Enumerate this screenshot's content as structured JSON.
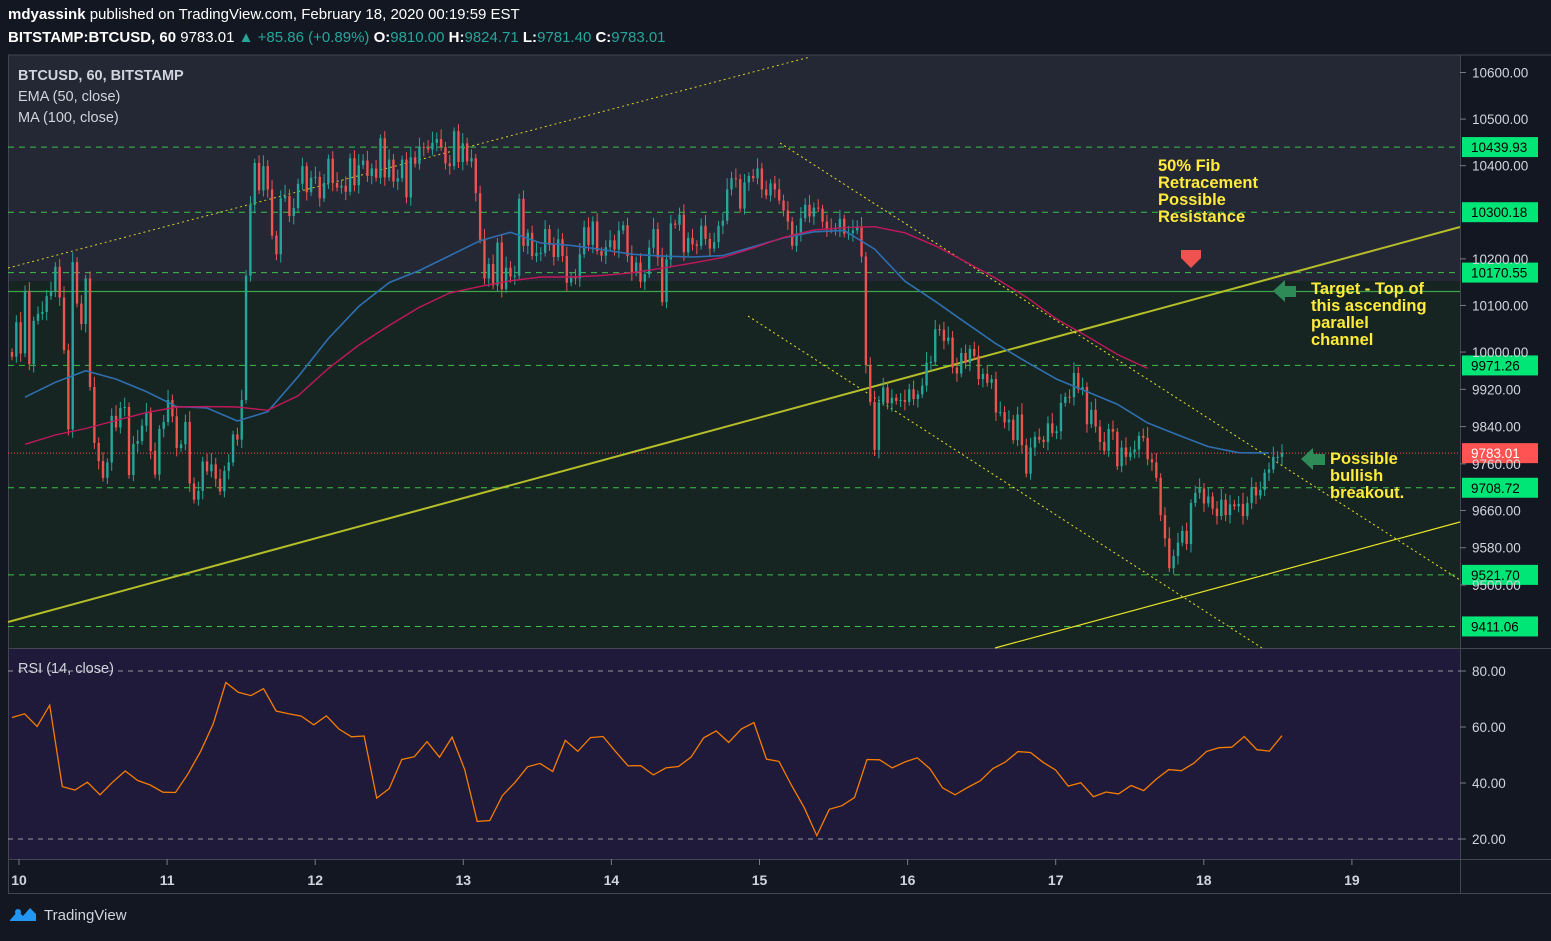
{
  "header": {
    "author": "mdyassink",
    "published": "published on TradingView.com, February 18, 2020 00:19:59 EST",
    "symbol": "BITSTAMP:BTCUSD, 60",
    "last": "9783.01",
    "change": "▲ +85.86 (+0.89%)",
    "o_label": "O:",
    "o": "9810.00",
    "h_label": "H:",
    "h": "9824.71",
    "l_label": "L:",
    "l": "9781.40",
    "c_label": "C:",
    "c": "9783.01"
  },
  "legend": {
    "title": "BTCUSD, 60, BITSTAMP",
    "ema": "EMA (50, close)",
    "ma": "MA (100, close)",
    "rsi": "RSI (14, close)"
  },
  "annotations": {
    "fib": [
      "50% Fib",
      "Retracement",
      "Possible",
      "Resistance"
    ],
    "target": [
      "Target - Top of",
      "this ascending",
      "parallel",
      "channel"
    ],
    "breakout": [
      "Possible",
      "bullish",
      "breakout."
    ]
  },
  "footer": {
    "brand": "TradingView"
  },
  "colors": {
    "bg": "#131722",
    "up": "#26a69a",
    "down": "#ef5350",
    "ema": "#2f6fb0",
    "ma": "#c2185b",
    "rsi": "#f57c00",
    "level": "#00e676",
    "channel": "#c8d02a",
    "annot": "#ffeb3b",
    "current": "#ff5252"
  },
  "chart_data": {
    "type": "candlestick",
    "title": "BTCUSD, 60, BITSTAMP",
    "x_tick_labels": [
      "10",
      "11",
      "12",
      "13",
      "14",
      "15",
      "16",
      "17",
      "18",
      "19"
    ],
    "y_tick_labels": [
      "10600.00",
      "10500.00",
      "10400.00",
      "10200.00",
      "10100.00",
      "10000.00",
      "9920.00",
      "9840.00",
      "9760.00",
      "9660.00",
      "9580.00",
      "9500.00"
    ],
    "ylim": [
      9395,
      10660
    ],
    "levels": [
      "10439.93",
      "10300.18",
      "10170.55",
      "9971.26",
      "9708.72",
      "9521.70",
      "9411.06"
    ],
    "current_price": "9783.01",
    "horizontal_line": 10130,
    "ohlc_series": [
      [
        9990,
        10064,
        9997,
        10131,
        9974,
        10067,
        10082
      ],
      [
        10086,
        10120,
        10131,
        10183,
        10117,
        10004,
        9834
      ],
      [
        10193,
        10104,
        10060,
        10158,
        9925,
        9805,
        9766
      ],
      [
        9730,
        9763,
        9863,
        9838,
        9880,
        9882,
        9736
      ],
      [
        9803,
        9809,
        9842,
        9870,
        9788,
        9737,
        9835
      ],
      [
        9850,
        9897,
        9862,
        9794,
        9802,
        9850,
        9718
      ],
      [
        9683,
        9702,
        9765,
        9744,
        9759,
        9728,
        9701
      ],
      [
        9745,
        9763,
        9823,
        9812,
        9897,
        10164,
        10316
      ],
      [
        10406,
        10347,
        10399,
        10349,
        10250,
        10210,
        10330
      ],
      [
        10335,
        10292,
        10309,
        10361,
        10399,
        10343,
        10374
      ],
      [
        10376,
        10330,
        10363,
        10415,
        10363,
        10353,
        10357
      ],
      [
        10344,
        10416,
        10358,
        10401,
        10411,
        10378,
        10394
      ],
      [
        10374,
        10459,
        10375,
        10413,
        10366,
        10373,
        10413
      ],
      [
        10332,
        10418,
        10404,
        10440,
        10438,
        10435,
        10449
      ],
      [
        10457,
        10440,
        10405,
        10399,
        10474,
        10408,
        10448
      ],
      [
        10409,
        10416,
        10341,
        10241,
        10158,
        10189,
        10143
      ],
      [
        10235,
        10135,
        10181,
        10162,
        10164,
        10329,
        10228
      ],
      [
        10256,
        10206,
        10213,
        10213,
        10264,
        10230,
        10204
      ],
      [
        10242,
        10206,
        10149,
        10161,
        10158,
        10210,
        10268
      ],
      [
        10230,
        10280,
        10217,
        10207,
        10225,
        10240,
        10220
      ],
      [
        10261,
        10272,
        10206,
        10171,
        10192,
        10151,
        10167
      ],
      [
        10224,
        10264,
        10203,
        10107,
        10199,
        10276,
        10273
      ],
      [
        10295,
        10214,
        10245,
        10231,
        10228,
        10271,
        10243
      ],
      [
        10222,
        10236,
        10271,
        10282,
        10349,
        10373,
        10371
      ],
      [
        10308,
        10364,
        10378,
        10373,
        10394,
        10349,
        10336
      ],
      [
        10362,
        10349,
        10325,
        10304,
        10280,
        10228,
        10255
      ],
      [
        10287,
        10316,
        10291,
        10310,
        10308,
        10280,
        10265
      ],
      [
        10263,
        10265,
        10286,
        10254,
        10255,
        10261,
        10270
      ],
      [
        10205,
        9972,
        9893,
        9790,
        9892,
        9924,
        9890
      ],
      [
        9902,
        9895,
        9897,
        9893,
        9920,
        9899,
        9909
      ],
      [
        9928,
        9977,
        9979,
        10049,
        10048,
        10024,
        10031
      ],
      [
        9967,
        9954,
        9998,
        9977,
        10007,
        9992,
        9942
      ],
      [
        9953,
        9934,
        9942,
        9870,
        9871,
        9849,
        9855
      ],
      [
        9811,
        9866,
        9800,
        9739,
        9795,
        9818,
        9812
      ],
      [
        9807,
        9847,
        9826,
        9830,
        9891,
        9904,
        9903
      ],
      [
        9955,
        9920,
        9925,
        9845,
        9876,
        9840,
        9807
      ],
      [
        9788,
        9835,
        9829,
        9755,
        9795,
        9775,
        9785
      ],
      [
        9791,
        9820,
        9816,
        9770,
        9763,
        9730,
        9650
      ],
      [
        9600,
        9536,
        9562,
        9591,
        9616,
        9588,
        9676
      ],
      [
        9698,
        9707,
        9675,
        9690,
        9664,
        9648,
        9683
      ],
      [
        9650,
        9673,
        9669,
        9674,
        9648,
        9676,
        9710
      ],
      [
        9692,
        9704,
        9741,
        9748,
        9775,
        9775,
        9783
      ]
    ],
    "series": [
      {
        "name": "EMA (50, close)",
        "values": [
          9903,
          9935,
          9960,
          9942,
          9915,
          9883,
          9880,
          9852,
          9872,
          9947,
          10029,
          10098,
          10149,
          10175,
          10207,
          10239,
          10257,
          10234,
          10229,
          10220,
          10210,
          10206,
          10204,
          10207,
          10226,
          10245,
          10258,
          10261,
          10221,
          10152,
          10109,
          10063,
          10018,
          9979,
          9942,
          9915,
          9888,
          9848,
          9822,
          9797,
          9784,
          9783
        ]
      },
      {
        "name": "MA (100, close)",
        "values": [
          9802,
          9822,
          9836,
          9853,
          9870,
          9882,
          9883,
          9882,
          9875,
          9906,
          9965,
          10015,
          10057,
          10096,
          10127,
          10141,
          10153,
          10161,
          10161,
          10164,
          10170,
          10180,
          10191,
          10203,
          10223,
          10246,
          10262,
          10267,
          10269,
          10256,
          10228,
          10194,
          10158,
          10118,
          10071,
          10034,
          9995,
          9965,
          null,
          null,
          null,
          null
        ]
      },
      {
        "name": "RSI (14, close)",
        "values": [
          63.4,
          64.7,
          60.2,
          67.8,
          38.7,
          37.5,
          40.3,
          35.8,
          40.3,
          44.3,
          40.9,
          39.3,
          36.7,
          36.6,
          43.3,
          51.3,
          61.1,
          75.9,
          72.4,
          71.2,
          73.7,
          65.7,
          64.7,
          63.9,
          60.8,
          64.0,
          59.3,
          56.5,
          56.8,
          34.6,
          38.0,
          48.4,
          49.4,
          54.8,
          49.2,
          56.4,
          44.8,
          26.3,
          26.6,
          35.5,
          40.2,
          45.8,
          47.0,
          44.1,
          55.2,
          51.3,
          56.2,
          56.6,
          51.2,
          46.1,
          46.2,
          42.9,
          45.4,
          45.9,
          49.2,
          56.1,
          58.6,
          54.5,
          59.3,
          61.6,
          48.5,
          47.7,
          39.1,
          31.2,
          21.2,
          30.6,
          31.9,
          34.8,
          48.4,
          48.3,
          45.4,
          47.5,
          49.0,
          45.1,
          38.3,
          35.8,
          38.4,
          40.8,
          45.1,
          47.5,
          51.2,
          50.9,
          47.4,
          44.6,
          38.9,
          40.1,
          35.1,
          36.8,
          36.1,
          39.1,
          37.3,
          41.4,
          44.8,
          44.4,
          47.1,
          51.3,
          52.6,
          52.8,
          56.6,
          51.9,
          51.4,
          56.9
        ]
      }
    ],
    "rsi_ticks": [
      "80.00",
      "60.00",
      "40.00",
      "20.00"
    ],
    "rsi_range": [
      20,
      80
    ]
  }
}
